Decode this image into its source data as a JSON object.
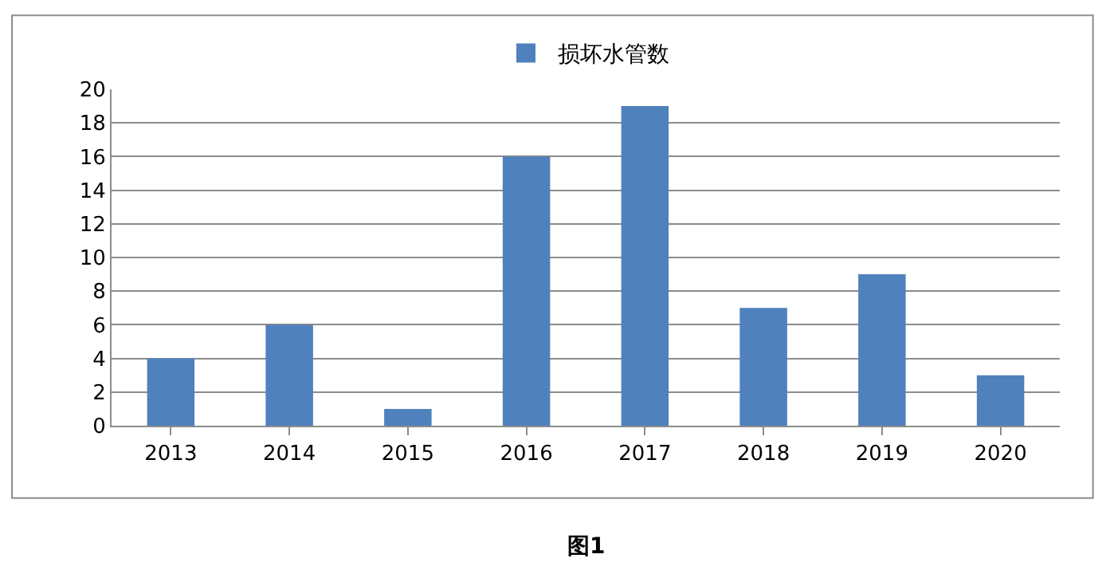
{
  "chart_data": {
    "type": "bar",
    "categories": [
      "2013",
      "2014",
      "2015",
      "2016",
      "2017",
      "2018",
      "2019",
      "2020"
    ],
    "series": [
      {
        "name": "损坏水管数",
        "color": "#4f81bd",
        "values": [
          4,
          6,
          1,
          16,
          19,
          7,
          9,
          3
        ]
      }
    ],
    "ylim": [
      0,
      20
    ],
    "yticks": [
      0,
      2,
      4,
      6,
      8,
      10,
      12,
      14,
      16,
      18,
      20
    ],
    "grid": "y",
    "legend": "top",
    "annotations": [
      "图1"
    ]
  }
}
